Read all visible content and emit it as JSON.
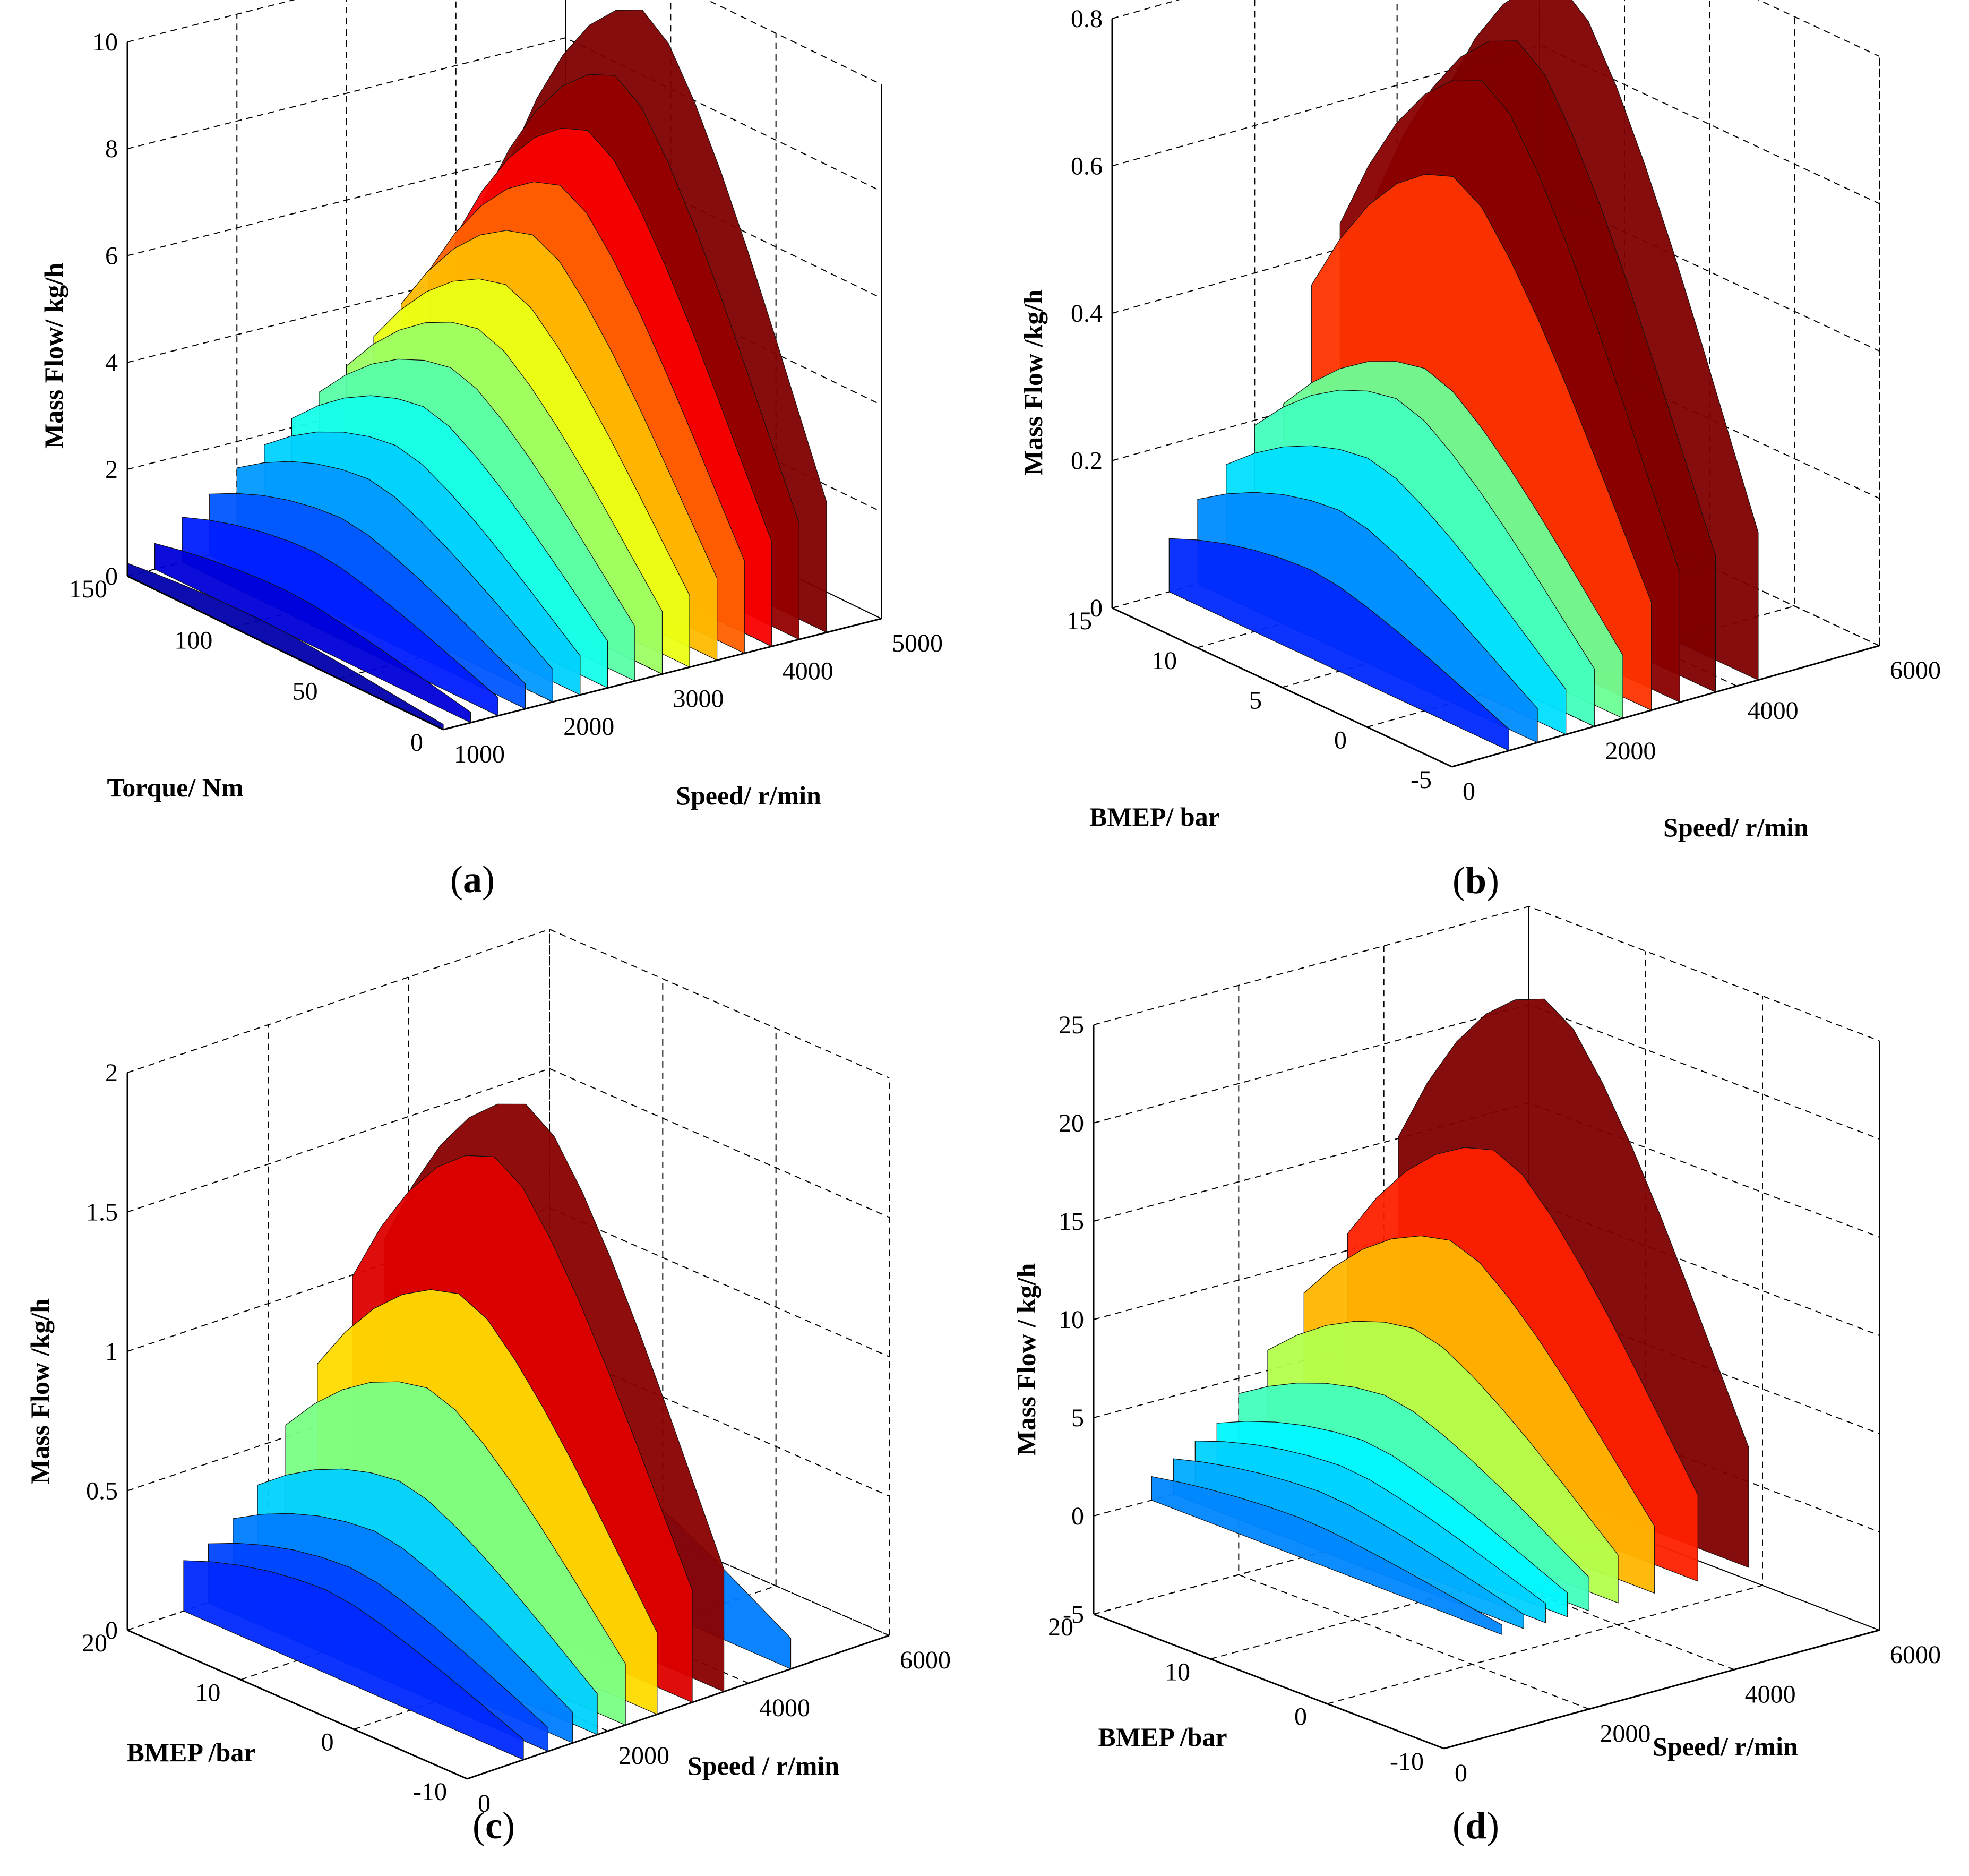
{
  "chart_data": [
    {
      "type": "surface3d",
      "panel": "a",
      "caption_letter": "a",
      "zlabel": "Mass Flow/ kg/h",
      "ylabel": "Torque/ Nm",
      "xlabel": "Speed/ r/min",
      "zticks": [
        "0",
        "2",
        "4",
        "6",
        "8",
        "10"
      ],
      "yticks": [
        "0",
        "50",
        "100",
        "150"
      ],
      "xticks": [
        "1000",
        "2000",
        "3000",
        "4000",
        "5000"
      ],
      "zlim": [
        0,
        10
      ],
      "ylim": [
        0,
        150
      ],
      "xlim": [
        1000,
        5000
      ],
      "colormap": "jet",
      "ridges": [
        {
          "x": 1000,
          "peak": 0.4
        },
        {
          "x": 1250,
          "peak": 0.8
        },
        {
          "x": 1500,
          "peak": 1.4
        },
        {
          "x": 1750,
          "peak": 1.9
        },
        {
          "x": 2000,
          "peak": 2.5
        },
        {
          "x": 2250,
          "peak": 3.0
        },
        {
          "x": 2500,
          "peak": 3.6
        },
        {
          "x": 2750,
          "peak": 4.2
        },
        {
          "x": 3000,
          "peak": 4.8
        },
        {
          "x": 3250,
          "peak": 5.5
        },
        {
          "x": 3500,
          "peak": 6.3
        },
        {
          "x": 3750,
          "peak": 7.1
        },
        {
          "x": 4000,
          "peak": 8.0
        },
        {
          "x": 4250,
          "peak": 8.9
        },
        {
          "x": 4500,
          "peak": 10.0
        }
      ]
    },
    {
      "type": "surface3d",
      "panel": "b",
      "caption_letter": "b",
      "zlabel": "Mass Flow /kg/h",
      "ylabel": "BMEP/ bar",
      "xlabel": "Speed/ r/min",
      "zticks": [
        "0",
        "0.2",
        "0.4",
        "0.6",
        "0.8"
      ],
      "yticks": [
        "-5",
        "0",
        "5",
        "10",
        "15"
      ],
      "xticks": [
        "0",
        "2000",
        "4000",
        "6000"
      ],
      "zlim": [
        0,
        0.8
      ],
      "ylim": [
        -5,
        15
      ],
      "xlim": [
        0,
        6000
      ],
      "colormap": "jet",
      "ridges": [
        {
          "x": 800,
          "peak": 0.12
        },
        {
          "x": 1200,
          "peak": 0.19
        },
        {
          "x": 1600,
          "peak": 0.25
        },
        {
          "x": 2000,
          "peak": 0.32
        },
        {
          "x": 2400,
          "peak": 0.35
        },
        {
          "x": 2800,
          "peak": 0.6
        },
        {
          "x": 3200,
          "peak": 0.72
        },
        {
          "x": 3700,
          "peak": 0.76
        },
        {
          "x": 4300,
          "peak": 0.82
        }
      ]
    },
    {
      "type": "surface3d",
      "panel": "c",
      "caption_letter": "c",
      "zlabel": "Mass Flow /kg/h",
      "ylabel": "BMEP /bar",
      "xlabel": "Speed / r/min",
      "zticks": [
        "0",
        "0.5",
        "1",
        "1.5",
        "2"
      ],
      "yticks": [
        "-10",
        "0",
        "10",
        "20"
      ],
      "xticks": [
        "0",
        "2000",
        "4000",
        "6000"
      ],
      "zlim": [
        0,
        2
      ],
      "ylim": [
        -10,
        20
      ],
      "xlim": [
        0,
        6000
      ],
      "colormap": "jet",
      "ridges": [
        {
          "x": 800,
          "peak": 0.3
        },
        {
          "x": 1150,
          "peak": 0.35
        },
        {
          "x": 1500,
          "peak": 0.45
        },
        {
          "x": 1850,
          "peak": 0.6
        },
        {
          "x": 2250,
          "peak": 0.9
        },
        {
          "x": 2700,
          "peak": 1.2
        },
        {
          "x": 3200,
          "peak": 1.65
        },
        {
          "x": 3650,
          "peak": 1.8
        },
        {
          "x": 4600,
          "peak": 0.45
        }
      ]
    },
    {
      "type": "surface3d",
      "panel": "d",
      "caption_letter": "d",
      "zlabel": "Mass Flow / kg/h",
      "ylabel": "BMEP /bar",
      "xlabel": "Speed/ r/min",
      "zticks": [
        "-5",
        "0",
        "5",
        "10",
        "15",
        "20",
        "25"
      ],
      "yticks": [
        "-10",
        "0",
        "10",
        "20"
      ],
      "xticks": [
        "0",
        "2000",
        "4000",
        "6000"
      ],
      "zlim": [
        -5,
        25
      ],
      "ylim": [
        -10,
        20
      ],
      "xlim": [
        0,
        6000
      ],
      "colormap": "jet",
      "ridges": [
        {
          "x": 800,
          "peak": 2
        },
        {
          "x": 1100,
          "peak": 3
        },
        {
          "x": 1400,
          "peak": 4
        },
        {
          "x": 1700,
          "peak": 5
        },
        {
          "x": 2000,
          "peak": 7
        },
        {
          "x": 2400,
          "peak": 10
        },
        {
          "x": 2900,
          "peak": 14
        },
        {
          "x": 3500,
          "peak": 18
        },
        {
          "x": 4200,
          "peak": 25
        }
      ]
    }
  ]
}
